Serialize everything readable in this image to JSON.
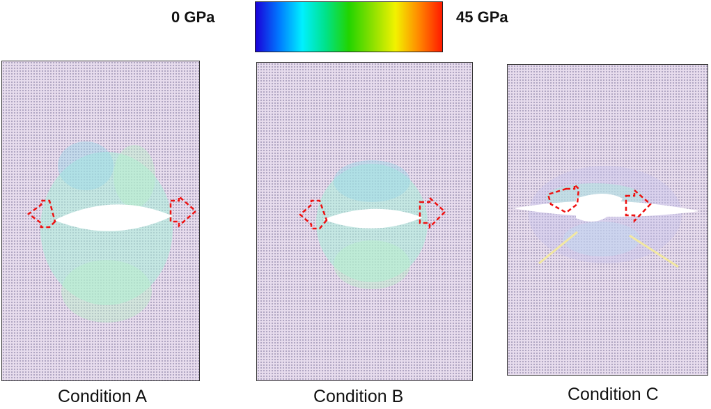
{
  "legend": {
    "min_label": "0 GPa",
    "max_label": "45 GPa",
    "gradient_colors": [
      "#1a00d8",
      "#0078ff",
      "#00f0ff",
      "#00e28a",
      "#22d400",
      "#8ae000",
      "#f2f200",
      "#ff8800",
      "#ff1a00"
    ]
  },
  "panels": [
    {
      "caption": "Condition A"
    },
    {
      "caption": "Condition B"
    },
    {
      "caption": "Condition C"
    }
  ],
  "colors": {
    "lattice_background": "#e7dced",
    "stress_halo": "#a8f0d8",
    "arrow": "#ee1111",
    "void": "#ffffff"
  }
}
